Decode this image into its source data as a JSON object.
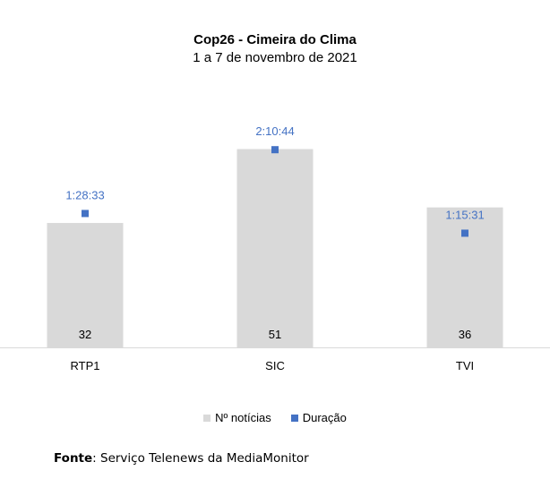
{
  "chart_data": {
    "type": "bar",
    "title": "Cop26 - Cimeira do Clima",
    "subtitle": "1 a 7 de novembro de 2021",
    "categories": [
      "RTP1",
      "SIC",
      "TVI"
    ],
    "series": [
      {
        "name": "Nº notícias",
        "type": "bar",
        "values": [
          32,
          51,
          36
        ],
        "labels": [
          "32",
          "51",
          "36"
        ]
      },
      {
        "name": "Duração",
        "type": "scatter",
        "values_seconds": [
          5313,
          7844,
          4531
        ],
        "labels": [
          "1:28:33",
          "2:10:44",
          "1:15:31"
        ]
      }
    ],
    "ylim_bars": [
      0,
      70
    ],
    "ylim_duration_seconds": [
      0,
      10800
    ],
    "legend_position": "bottom"
  },
  "colors": {
    "bar": "#d9d9d9",
    "marker": "#4472c4",
    "marker_label": "#4472c4"
  },
  "source": {
    "label": "Fonte",
    "text": ": Serviço Telenews da MediaMonitor"
  }
}
